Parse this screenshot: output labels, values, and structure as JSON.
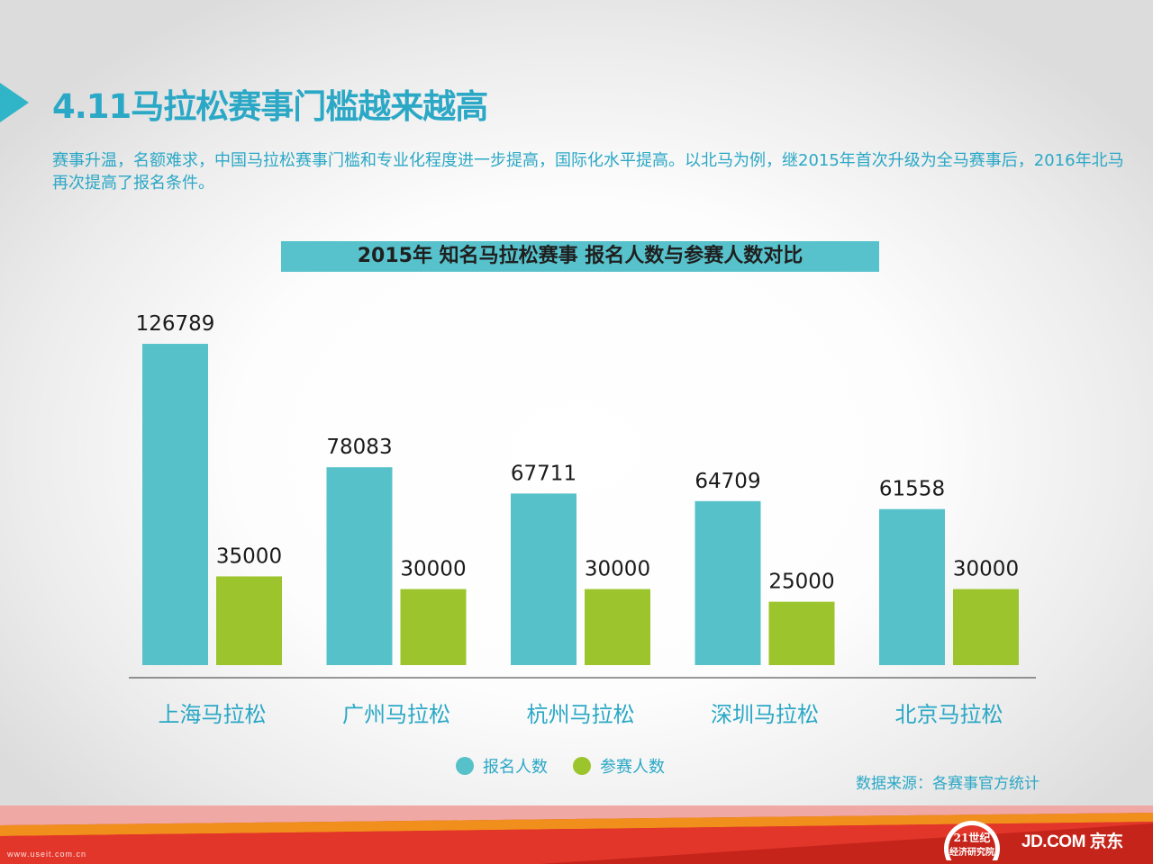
{
  "header": {
    "title": "4.11马拉松赛事门槛越来越高",
    "intro": "赛事升温，名额难求，中国马拉松赛事门槛和专业化程度进一步提高，国际化水平提高。以北马为例，继2015年首次升级为全马赛事后，2016年北马再次提高了报名条件。"
  },
  "chart_data": {
    "type": "bar",
    "title": "2015年 知名马拉松赛事 报名人数与参赛人数对比",
    "categories": [
      "上海马拉松",
      "广州马拉松",
      "杭州马拉松",
      "深圳马拉松",
      "北京马拉松"
    ],
    "series": [
      {
        "name": "报名人数",
        "color": "#56c1c9",
        "values": [
          126789,
          78083,
          67711,
          64709,
          61558
        ]
      },
      {
        "name": "参赛人数",
        "color": "#9cc42c",
        "values": [
          35000,
          30000,
          30000,
          25000,
          30000
        ]
      }
    ],
    "ylim": [
      0,
      130000
    ],
    "grid": false,
    "y_axis_visible": false,
    "data_labels": true,
    "legend_position": "bottom"
  },
  "source": "数据来源：各赛事官方统计",
  "footer": {
    "watermark": "www.useit.com.cn",
    "logo_21_line1": "21世纪",
    "logo_21_line2": "经济研究院",
    "logo_jd": "JD.COM 京东"
  }
}
